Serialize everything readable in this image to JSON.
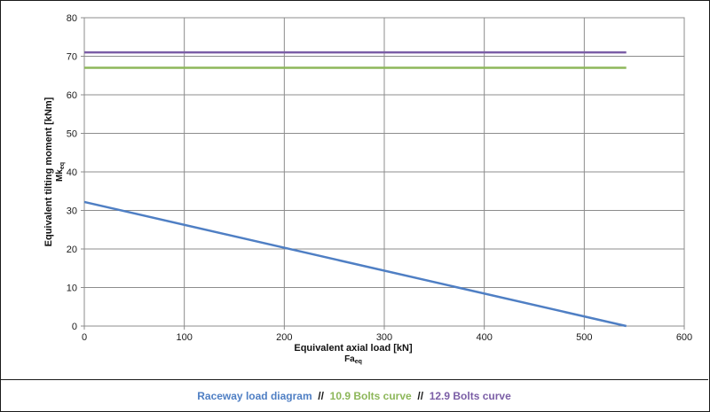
{
  "chart_data": {
    "type": "line",
    "title": "",
    "xlabel": "Equivalent axial load [kN]",
    "xlabel_symbol": "Fa",
    "xlabel_subscript": "eq",
    "ylabel": "Equivalent tilting moment [kNm]",
    "ylabel_symbol": "Mk",
    "ylabel_subscript": "eq",
    "xlim": [
      0,
      600
    ],
    "ylim": [
      0,
      80
    ],
    "xticks": [
      0,
      100,
      200,
      300,
      400,
      500,
      600
    ],
    "yticks": [
      0,
      10,
      20,
      30,
      40,
      50,
      60,
      70,
      80
    ],
    "grid": true,
    "legend_position": "bottom",
    "series": [
      {
        "name": "Raceway load diagram",
        "color": "#4f7fc4",
        "x": [
          0,
          542
        ],
        "y": [
          32.2,
          0
        ]
      },
      {
        "name": "10.9 Bolts curve",
        "color": "#8db75a",
        "x": [
          0,
          542
        ],
        "y": [
          67,
          67
        ]
      },
      {
        "name": "12.9 Bolts curve",
        "color": "#7b5ea6",
        "x": [
          0,
          542
        ],
        "y": [
          71,
          71
        ]
      }
    ]
  },
  "legend": {
    "separator": "  //  ",
    "separator_color": "#1a1a1a"
  }
}
